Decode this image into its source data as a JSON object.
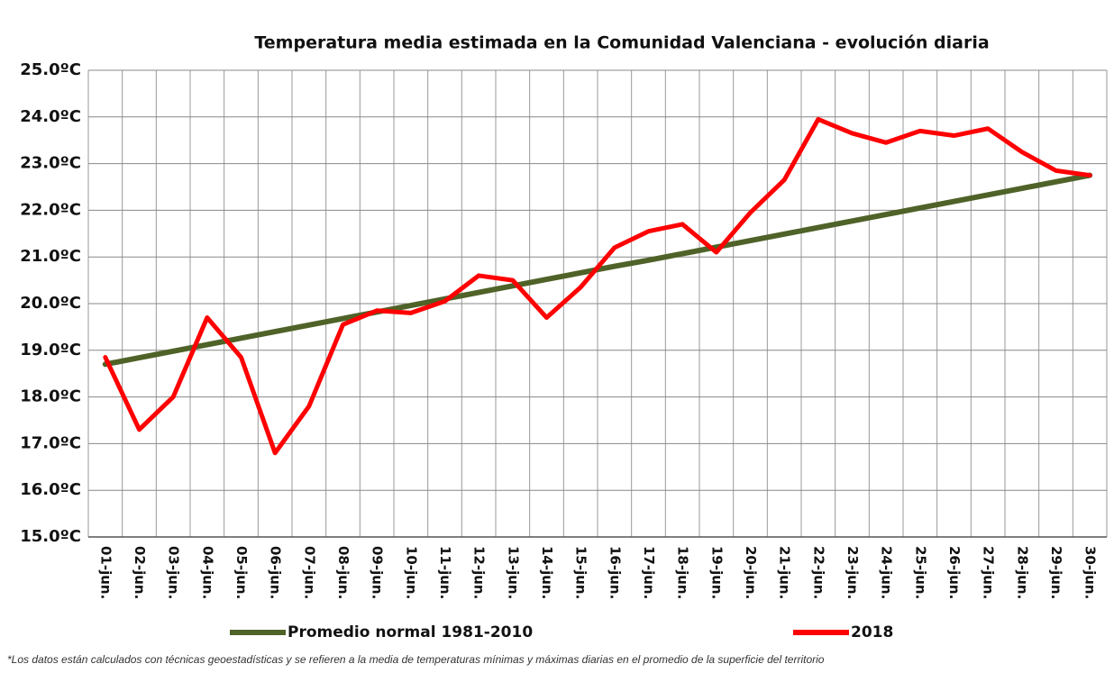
{
  "chart_data": {
    "type": "line",
    "title": "Temperatura media estimada en la Comunidad Valenciana - evolución diaria",
    "categories": [
      "01-jun.",
      "02-jun.",
      "03-jun.",
      "04-jun.",
      "05-jun.",
      "06-jun.",
      "07-jun.",
      "08-jun.",
      "09-jun.",
      "10-jun.",
      "11-jun.",
      "12-jun.",
      "13-jun.",
      "14-jun.",
      "15-jun.",
      "16-jun.",
      "17-jun.",
      "18-jun.",
      "19-jun.",
      "20-jun.",
      "21-jun.",
      "22-jun.",
      "23-jun.",
      "24-jun.",
      "25-jun.",
      "26-jun.",
      "27-jun.",
      "28-jun.",
      "29-jun.",
      "30-jun."
    ],
    "series": [
      {
        "name": "Promedio normal 1981-2010",
        "color": "#4f6228",
        "values": [
          18.7,
          18.84,
          18.98,
          19.12,
          19.26,
          19.4,
          19.54,
          19.68,
          19.82,
          19.96,
          20.1,
          20.24,
          20.38,
          20.52,
          20.66,
          20.8,
          20.93,
          21.07,
          21.21,
          21.35,
          21.49,
          21.63,
          21.77,
          21.91,
          22.05,
          22.19,
          22.33,
          22.47,
          22.61,
          22.75
        ]
      },
      {
        "name": "2018",
        "color": "#ff0000",
        "values": [
          18.85,
          17.3,
          18.0,
          19.7,
          18.85,
          16.8,
          17.8,
          19.55,
          19.85,
          19.8,
          20.05,
          20.6,
          20.5,
          19.7,
          20.35,
          21.2,
          21.55,
          21.7,
          21.1,
          21.95,
          22.65,
          23.95,
          23.65,
          23.45,
          23.7,
          23.6,
          23.75,
          23.25,
          22.85,
          22.75
        ]
      }
    ],
    "ylim": [
      15,
      25
    ],
    "yticks": [
      {
        "value": 15,
        "label": "15.0ºC"
      },
      {
        "value": 16,
        "label": "16.0ºC"
      },
      {
        "value": 17,
        "label": "17.0ºC"
      },
      {
        "value": 18,
        "label": "18.0ºC"
      },
      {
        "value": 19,
        "label": "19.0ºC"
      },
      {
        "value": 20,
        "label": "20.0ºC"
      },
      {
        "value": 21,
        "label": "21.0ºC"
      },
      {
        "value": 22,
        "label": "22.0ºC"
      },
      {
        "value": 23,
        "label": "23.0ºC"
      },
      {
        "value": 24,
        "label": "24.0ºC"
      },
      {
        "value": 25,
        "label": "25.0ºC"
      }
    ],
    "grid": true,
    "legend": "bottom",
    "footnote": "*Los datos están calculados con técnicas geoestadísticas y se refieren a la media de temperaturas mínimas y máximas diarias en el promedio de la superficie del territorio"
  }
}
